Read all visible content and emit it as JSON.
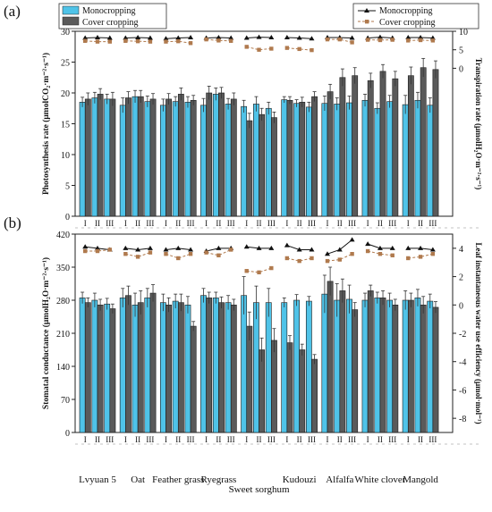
{
  "colors": {
    "mono": "#4FC3E8",
    "cover": "#5A5A5A",
    "tri_mono": "#111111",
    "tri_cover": "#B07A4E",
    "bar_stroke": "#1a1a1a"
  },
  "legend": {
    "bar_mono": "Monocropping",
    "bar_cover": "Cover cropping",
    "line_mono": "Monocropping",
    "line_cover": "Cover cropping"
  },
  "sub_labels": [
    "I",
    "II",
    "III"
  ],
  "categories": [
    "Lvyuan 5",
    "Oat",
    "Feather grass",
    "Ryegrass",
    "Sweet sorghum",
    "Kudouzi",
    "Alfalfa",
    "White clover",
    "Mangold"
  ],
  "chart_data": [
    {
      "panel": "(a)",
      "type": "bar",
      "ylabel_left": "Photosynthesis rate (μmolCO₂·m⁻²·s⁻¹)",
      "ylabel_right": "Transpiration rate (μmolH₂O·m⁻²·s⁻¹)",
      "ylim_left": [
        0,
        30
      ],
      "yticks_left": [
        0,
        5,
        10,
        15,
        20,
        25,
        30
      ],
      "ylim_right": [
        -40,
        10
      ],
      "yticks_right": [
        10,
        5,
        0
      ],
      "bars_mono": [
        [
          18.5,
          19.2,
          19.0
        ],
        [
          18.0,
          19.4,
          18.6
        ],
        [
          18.0,
          18.6,
          18.5
        ],
        [
          18.0,
          19.8,
          18.2
        ],
        [
          17.8,
          18.2,
          17.5
        ],
        [
          18.9,
          18.3,
          17.7
        ],
        [
          18.3,
          18.2,
          18.4
        ],
        [
          18.8,
          17.5,
          18.6
        ],
        [
          18.1,
          18.8,
          18.0
        ]
      ],
      "bars_cover": [
        [
          19.0,
          19.8,
          19.0
        ],
        [
          19.2,
          19.4,
          19.0
        ],
        [
          19.0,
          19.8,
          18.8
        ],
        [
          20.0,
          20.0,
          19.0
        ],
        [
          15.5,
          16.5,
          16.0
        ],
        [
          18.8,
          18.5,
          19.4
        ],
        [
          20.2,
          22.5,
          22.8
        ],
        [
          22.0,
          23.5,
          22.3
        ],
        [
          22.8,
          24.1,
          23.8
        ]
      ],
      "bars_mono_err": [
        [
          0.8,
          0.9,
          0.8
        ],
        [
          1.2,
          1.0,
          0.9
        ],
        [
          1.0,
          0.8,
          0.9
        ],
        [
          1.1,
          1.0,
          0.9
        ],
        [
          1.0,
          1.2,
          1.0
        ],
        [
          0.5,
          0.6,
          0.8
        ],
        [
          1.2,
          1.0,
          1.1
        ],
        [
          1.0,
          0.9,
          1.0
        ],
        [
          1.5,
          1.3,
          1.2
        ]
      ],
      "bars_cover_err": [
        [
          1.0,
          0.9,
          1.1
        ],
        [
          1.0,
          1.0,
          0.9
        ],
        [
          0.9,
          1.0,
          0.8
        ],
        [
          1.1,
          0.9,
          1.0
        ],
        [
          1.2,
          1.0,
          0.9
        ],
        [
          0.6,
          0.8,
          0.8
        ],
        [
          1.2,
          1.4,
          1.3
        ],
        [
          1.2,
          1.1,
          1.2
        ],
        [
          1.4,
          1.5,
          1.4
        ]
      ],
      "line_mono": [
        [
          8.2,
          8.3,
          8.2
        ],
        [
          8.2,
          8.3,
          8.2
        ],
        [
          8.0,
          8.2,
          8.3
        ],
        [
          8.2,
          8.3,
          8.2
        ],
        [
          8.2,
          8.4,
          8.3
        ],
        [
          8.3,
          8.2,
          8.0
        ],
        [
          8.3,
          8.3,
          8.2
        ],
        [
          8.2,
          8.4,
          8.2
        ],
        [
          8.3,
          8.3,
          8.2
        ]
      ],
      "line_cover": [
        [
          7.4,
          7.2,
          7.2
        ],
        [
          7.4,
          7.3,
          7.2
        ],
        [
          7.2,
          7.3,
          6.8
        ],
        [
          7.8,
          7.5,
          7.4
        ],
        [
          5.8,
          5.0,
          5.3
        ],
        [
          5.5,
          5.2,
          4.9
        ],
        [
          7.8,
          7.8,
          7.0
        ],
        [
          7.7,
          7.6,
          7.7
        ],
        [
          7.5,
          7.6,
          7.5
        ]
      ]
    },
    {
      "panel": "(b)",
      "type": "bar",
      "ylabel_left": "Stomatal conductance (μmolH₂O·m⁻²·s⁻¹)",
      "ylabel_right": "Leaf instantaneous water use efficiency (μmol·mol⁻¹)",
      "ylim_left": [
        0,
        420
      ],
      "yticks_left": [
        0,
        70,
        140,
        210,
        280,
        350,
        420
      ],
      "ylim_right": [
        -9,
        5
      ],
      "yticks_right": [
        4,
        2,
        0,
        -2,
        -4,
        -6,
        -8
      ],
      "bars_mono": [
        [
          285,
          280,
          272
        ],
        [
          285,
          270,
          285
        ],
        [
          275,
          278,
          270
        ],
        [
          290,
          285,
          275
        ],
        [
          290,
          275,
          275
        ],
        [
          275,
          280,
          278
        ],
        [
          293,
          280,
          282
        ],
        [
          280,
          285,
          280
        ],
        [
          280,
          285,
          278
        ]
      ],
      "bars_cover": [
        [
          275,
          270,
          262
        ],
        [
          290,
          275,
          295
        ],
        [
          270,
          275,
          225
        ],
        [
          285,
          275,
          270
        ],
        [
          225,
          175,
          195
        ],
        [
          190,
          175,
          155
        ],
        [
          320,
          300,
          260
        ],
        [
          300,
          285,
          270
        ],
        [
          280,
          270,
          265
        ]
      ],
      "bars_mono_err": [
        [
          12,
          15,
          12
        ],
        [
          20,
          25,
          20
        ],
        [
          18,
          15,
          18
        ],
        [
          15,
          12,
          15
        ],
        [
          40,
          35,
          30
        ],
        [
          10,
          12,
          10
        ],
        [
          40,
          35,
          30
        ],
        [
          15,
          12,
          15
        ],
        [
          20,
          18,
          15
        ]
      ],
      "bars_cover_err": [
        [
          10,
          12,
          10
        ],
        [
          20,
          25,
          18
        ],
        [
          15,
          18,
          10
        ],
        [
          12,
          12,
          12
        ],
        [
          30,
          25,
          25
        ],
        [
          15,
          12,
          10
        ],
        [
          30,
          25,
          15
        ],
        [
          12,
          15,
          12
        ],
        [
          15,
          18,
          12
        ]
      ],
      "line_mono": [
        [
          4.1,
          4.0,
          3.9
        ],
        [
          4.0,
          3.9,
          4.0
        ],
        [
          3.9,
          4.0,
          3.9
        ],
        [
          3.8,
          4.0,
          4.0
        ],
        [
          4.1,
          4.0,
          4.0
        ],
        [
          4.2,
          3.9,
          3.9
        ],
        [
          3.6,
          3.9,
          4.6
        ],
        [
          4.3,
          4.0,
          4.0
        ],
        [
          4.0,
          4.0,
          3.9
        ]
      ],
      "line_cover": [
        [
          3.8,
          3.8,
          3.9
        ],
        [
          3.6,
          3.4,
          3.7
        ],
        [
          3.6,
          3.3,
          3.6
        ],
        [
          3.7,
          3.5,
          3.9
        ],
        [
          2.4,
          2.3,
          2.6
        ],
        [
          3.3,
          3.1,
          3.3
        ],
        [
          3.1,
          3.2,
          3.6
        ],
        [
          3.8,
          3.6,
          3.5
        ],
        [
          3.3,
          3.4,
          3.6
        ]
      ]
    }
  ]
}
